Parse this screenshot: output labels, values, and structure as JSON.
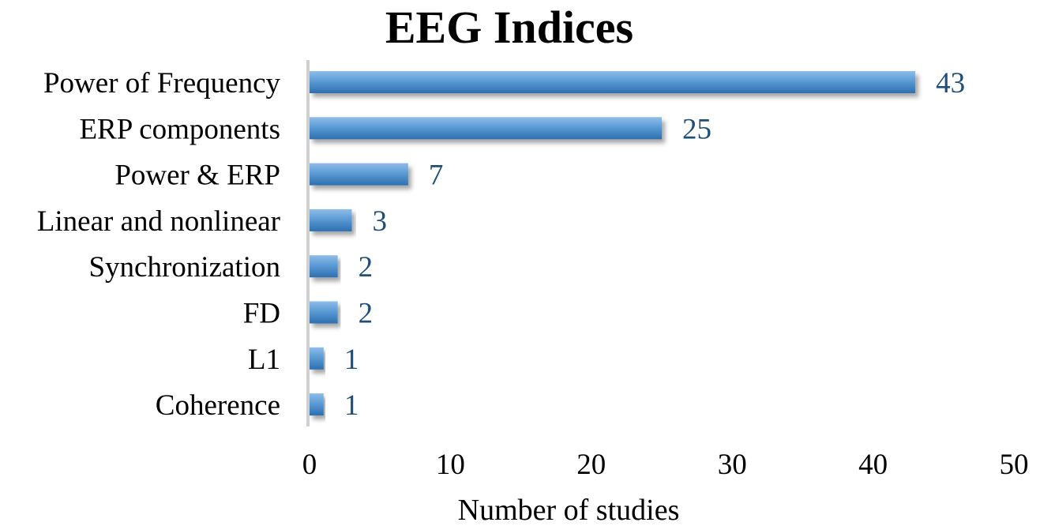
{
  "chart_data": {
    "type": "bar",
    "orientation": "horizontal",
    "title": "EEG Indices",
    "xlabel": "Number of studies",
    "ylabel": "",
    "categories": [
      "Power of Frequency",
      "ERP components",
      "Power & ERP",
      "Linear and nonlinear",
      "Synchronization",
      "FD",
      "L1",
      "Coherence"
    ],
    "values": [
      43,
      25,
      7,
      3,
      2,
      2,
      1,
      1
    ],
    "xlim": [
      0,
      50
    ],
    "xticks": [
      0,
      10,
      20,
      30,
      40,
      50
    ],
    "data_labels": true,
    "grid": false,
    "legend": "none",
    "colors": {
      "bar": "#5b9bd5",
      "bar_dark": "#2e6fb0",
      "value_label": "#1f4e79",
      "axis": "#d0d0d0",
      "text": "#000000"
    }
  }
}
